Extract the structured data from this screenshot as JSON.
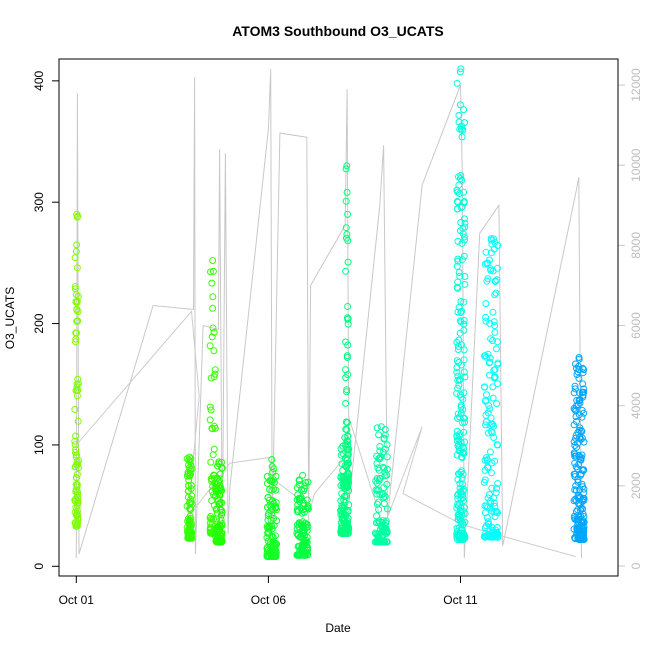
{
  "chart_data": {
    "type": "scatter",
    "title": "ATOM3 Southbound O3_UCATS",
    "xlabel": "Date",
    "ylabel": "O3_UCATS",
    "x_unit": "day of October (fractional)",
    "xlim": [
      0.55,
      15.1
    ],
    "ylim": [
      -8,
      418
    ],
    "y_ticks": [
      0,
      100,
      200,
      300,
      400
    ],
    "x_ticks": [
      {
        "day": 1,
        "label": "Oct 01"
      },
      {
        "day": 6,
        "label": "Oct 06"
      },
      {
        "day": 11,
        "label": "Oct 11"
      }
    ],
    "y2": {
      "description": "altitude trace (gray line)",
      "lim": [
        -250,
        12650
      ],
      "ticks": [
        0,
        2000,
        4000,
        6000,
        8000,
        10000,
        12000
      ],
      "color": "#c8c8c8"
    },
    "altitude_trace": [
      [
        1.0,
        200
      ],
      [
        1.03,
        11800
      ],
      [
        1.06,
        2800
      ],
      [
        1.07,
        300
      ],
      [
        3.0,
        6500
      ],
      [
        4.05,
        6400
      ],
      [
        4.08,
        12200
      ],
      [
        4.1,
        300
      ],
      [
        4.3,
        6000
      ],
      [
        4.7,
        5900
      ],
      [
        4.73,
        10400
      ],
      [
        4.8,
        600
      ],
      [
        4.88,
        10300
      ],
      [
        4.95,
        800
      ],
      [
        5.0,
        2000
      ],
      [
        6.0,
        10900
      ],
      [
        6.06,
        12400
      ],
      [
        6.1,
        1000
      ],
      [
        6.3,
        10800
      ],
      [
        7.0,
        10700
      ],
      [
        7.05,
        1000
      ],
      [
        7.1,
        7000
      ],
      [
        8.0,
        8500
      ],
      [
        8.05,
        11900
      ],
      [
        8.1,
        1600
      ],
      [
        8.9,
        9000
      ],
      [
        9.0,
        10500
      ],
      [
        9.1,
        1200
      ],
      [
        10.0,
        9500
      ],
      [
        11.0,
        12000
      ],
      [
        11.05,
        9600
      ],
      [
        11.1,
        200
      ],
      [
        11.5,
        8300
      ],
      [
        12.0,
        9000
      ],
      [
        12.1,
        500
      ],
      [
        14.0,
        9300
      ],
      [
        14.08,
        9700
      ],
      [
        14.15,
        200
      ]
    ],
    "connector_line": [
      [
        1.0,
        100
      ],
      [
        4.0,
        210
      ],
      [
        4.2,
        140
      ],
      [
        3.9,
        40
      ],
      [
        5.0,
        85
      ],
      [
        6.1,
        90
      ],
      [
        6.0,
        75
      ],
      [
        7.1,
        48
      ],
      [
        7.2,
        60
      ],
      [
        8.0,
        90
      ],
      [
        8.1,
        122
      ],
      [
        9.0,
        32
      ],
      [
        10.0,
        115
      ],
      [
        9.5,
        60
      ],
      [
        11.0,
        35
      ],
      [
        11.5,
        30
      ],
      [
        14.0,
        8
      ]
    ],
    "series": [
      {
        "color": "#7fff00",
        "day_start": 0.96,
        "day_end": 1.06,
        "y_min": 33,
        "y_max": 290,
        "points": 85
      },
      {
        "color": "#33ff00",
        "day_start": 3.88,
        "day_end": 4.02,
        "y_min": 23,
        "y_max": 90,
        "points": 70
      },
      {
        "color": "#38ff00",
        "day_start": 4.48,
        "day_end": 4.62,
        "y_min": 27,
        "y_max": 252,
        "points": 60
      },
      {
        "color": "#22ff00",
        "day_start": 4.62,
        "day_end": 4.8,
        "y_min": 20,
        "y_max": 86,
        "points": 90
      },
      {
        "color": "#15ff25",
        "day_start": 5.96,
        "day_end": 6.22,
        "y_min": 8,
        "y_max": 88,
        "points": 110
      },
      {
        "color": "#00ff40",
        "day_start": 6.74,
        "day_end": 7.04,
        "y_min": 9,
        "y_max": 75,
        "points": 110
      },
      {
        "color": "#00ff80",
        "day_start": 7.88,
        "day_end": 8.1,
        "y_min": 27,
        "y_max": 106,
        "points": 120
      },
      {
        "color": "#00ff80",
        "day_start": 8.0,
        "day_end": 8.08,
        "y_min": 65,
        "y_max": 330,
        "points": 60
      },
      {
        "color": "#00ffa0",
        "day_start": 8.78,
        "day_end": 9.1,
        "y_min": 20,
        "y_max": 115,
        "points": 110
      },
      {
        "color": "#00ffdd",
        "day_start": 10.9,
        "day_end": 11.12,
        "y_min": 22,
        "y_max": 410,
        "points": 210
      },
      {
        "color": "#00ffff",
        "day_start": 11.62,
        "day_end": 11.98,
        "y_min": 24,
        "y_max": 270,
        "points": 150
      },
      {
        "color": "#00a6ff",
        "day_start": 13.95,
        "day_end": 14.22,
        "y_min": 22,
        "y_max": 172,
        "points": 180
      }
    ]
  }
}
